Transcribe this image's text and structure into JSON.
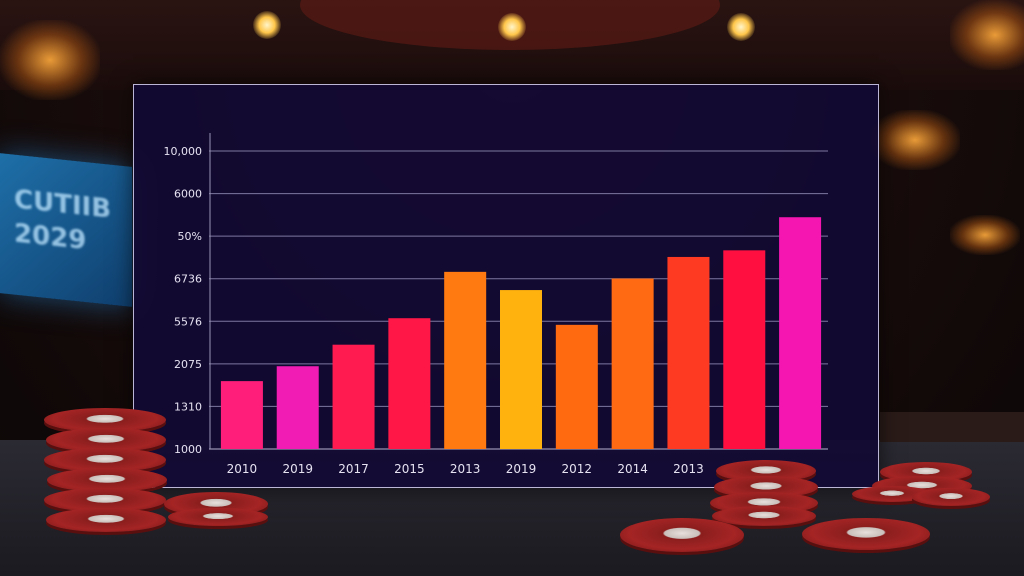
{
  "background_sign": {
    "lines": [
      "CUTIIB",
      "2029"
    ]
  },
  "chart_data": {
    "type": "bar",
    "categories": [
      "2010",
      "2019",
      "2017",
      "2015",
      "2013",
      "2019",
      "2012",
      "2014",
      "2013",
      "",
      ""
    ],
    "y_tick_labels": [
      "10,000",
      "6000",
      "50%",
      "6736",
      "5576",
      "2075",
      "1310",
      "1000"
    ],
    "series": [
      {
        "values": [
          3050,
          3500,
          4150,
          4950,
          6350,
          5800,
          4750,
          6150,
          6800,
          7000,
          8000
        ]
      }
    ],
    "ylim": [
      1000,
      10000
    ],
    "colors": [
      "#ff1f7a",
      "#f01cb4",
      "#ff1a50",
      "#ff1747",
      "#ff7a10",
      "#ffb20e",
      "#ff6a10",
      "#ff6a12",
      "#ff3a22",
      "#ff0f40",
      "#f516b2"
    ],
    "grid": true,
    "legend": "none"
  }
}
